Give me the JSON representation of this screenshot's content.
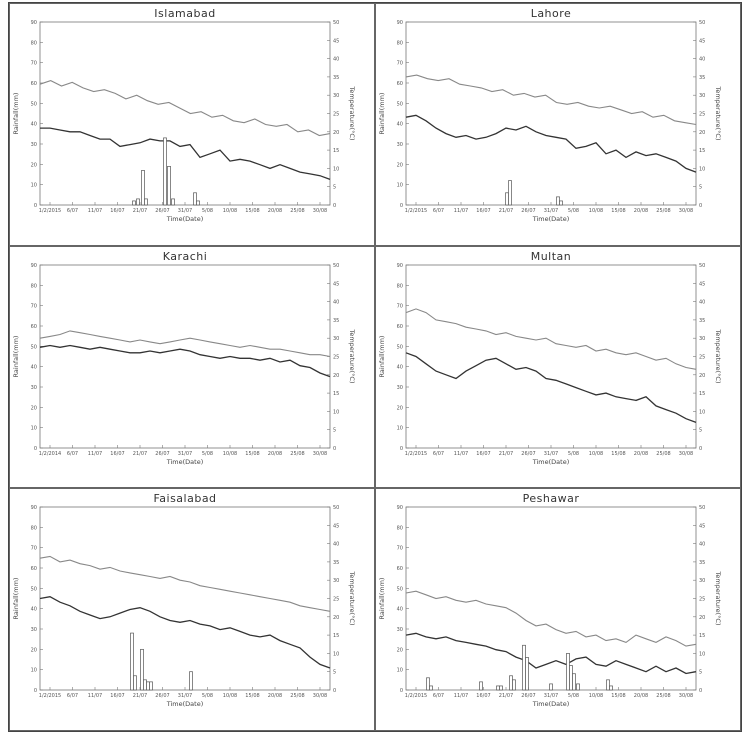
{
  "chart_data": [
    {
      "type": "line",
      "title": "Islamabad",
      "xlabel": "Time(Date)",
      "ylabel": "Rainfall(mm)",
      "y2label": "Temperature(°C)",
      "ylim": [
        0,
        90
      ],
      "y2lim": [
        0,
        50
      ],
      "xticks": [
        "1/2/2015",
        "6/07",
        "11/07",
        "16/07",
        "21/07",
        "26/07",
        "31/07",
        "5/08",
        "10/08",
        "15/08",
        "20/08",
        "25/08",
        "30/08"
      ],
      "series": [
        {
          "type": "line",
          "axis": "right",
          "values": [
            33,
            34,
            32.5,
            33.5,
            32,
            31,
            31.5,
            30.5,
            29,
            30,
            28.5,
            27.5,
            28,
            26.5,
            25,
            25.5,
            24,
            24.5,
            23,
            22.5,
            23.5,
            22,
            21.5,
            22,
            20,
            20.5,
            19,
            19.5
          ]
        },
        {
          "type": "line",
          "axis": "right",
          "values": [
            21,
            21,
            20.5,
            20,
            20,
            19,
            18,
            18,
            16,
            16.5,
            17,
            18,
            17.5,
            17.5,
            16,
            16.5,
            13,
            14,
            15,
            12,
            12.5,
            12,
            11,
            10,
            11,
            10,
            9,
            8.5,
            8,
            7
          ]
        },
        {
          "type": "bar",
          "axis": "left",
          "values": [
            {
              "x": 9.4,
              "y": 2
            },
            {
              "x": 9.8,
              "y": 3
            },
            {
              "x": 10.3,
              "y": 17
            },
            {
              "x": 10.6,
              "y": 3
            },
            {
              "x": 12.5,
              "y": 33
            },
            {
              "x": 12.9,
              "y": 19
            },
            {
              "x": 13.3,
              "y": 3
            },
            {
              "x": 15.5,
              "y": 6
            },
            {
              "x": 15.8,
              "y": 2
            }
          ]
        }
      ]
    },
    {
      "type": "line",
      "title": "Lahore",
      "xlabel": "Time(Date)",
      "ylabel": "Rainfall(mm)",
      "y2label": "Temperature(°C)",
      "ylim": [
        0,
        90
      ],
      "y2lim": [
        0,
        50
      ],
      "xticks": [
        "1/2/2015",
        "6/07",
        "11/07",
        "16/07",
        "21/07",
        "26/07",
        "31/07",
        "5/08",
        "10/08",
        "15/08",
        "20/08",
        "25/08",
        "30/08"
      ],
      "series": [
        {
          "type": "line",
          "axis": "right",
          "values": [
            35,
            35.5,
            34.5,
            34,
            34.5,
            33,
            32.5,
            32,
            31,
            31.5,
            30,
            30.5,
            29.5,
            30,
            28,
            27.5,
            28,
            27,
            26.5,
            27,
            26,
            25,
            25.5,
            24,
            24.5,
            23,
            22.5,
            22
          ]
        },
        {
          "type": "line",
          "axis": "right",
          "values": [
            24,
            24.5,
            23,
            21,
            19.5,
            18.5,
            19,
            18,
            18.5,
            19.5,
            21,
            20.5,
            21.5,
            20,
            19,
            18.5,
            18,
            15.5,
            16,
            17,
            14,
            15,
            13,
            14.5,
            13.5,
            14,
            13,
            12,
            10,
            9
          ]
        },
        {
          "type": "bar",
          "axis": "left",
          "values": [
            {
              "x": 10.1,
              "y": 6
            },
            {
              "x": 10.4,
              "y": 12
            },
            {
              "x": 15.2,
              "y": 4
            },
            {
              "x": 15.5,
              "y": 2
            }
          ]
        }
      ]
    },
    {
      "type": "line",
      "title": "Karachi",
      "xlabel": "Time(Date)",
      "ylabel": "Rainfall(mm)",
      "y2label": "Temperature(°C)",
      "ylim": [
        0,
        90
      ],
      "y2lim": [
        0,
        50
      ],
      "xticks": [
        "1/2/2014",
        "6/07",
        "11/07",
        "16/07",
        "21/07",
        "26/07",
        "31/07",
        "5/08",
        "10/08",
        "15/08",
        "20/08",
        "25/08",
        "30/08"
      ],
      "series": [
        {
          "type": "line",
          "axis": "right",
          "values": [
            30,
            30.5,
            31,
            32,
            31.5,
            31,
            30.5,
            30,
            29.5,
            29,
            29.5,
            29,
            28.5,
            29,
            29.5,
            30,
            29.5,
            29,
            28.5,
            28,
            27.5,
            28,
            27.5,
            27,
            27,
            26.5,
            26,
            25.5,
            25.5,
            25
          ]
        },
        {
          "type": "line",
          "axis": "right",
          "values": [
            27.5,
            28,
            27.5,
            28,
            27.5,
            27,
            27.5,
            27,
            26.5,
            26,
            26,
            26.5,
            26,
            26.5,
            27,
            26.5,
            25.5,
            25,
            24.5,
            25,
            24.5,
            24.5,
            24,
            24.5,
            23.5,
            24,
            22.5,
            22,
            20.5,
            19.5
          ]
        }
      ]
    },
    {
      "type": "line",
      "title": "Multan",
      "xlabel": "Time(Date)",
      "ylabel": "Rainfall(mm)",
      "y2label": "Temperature(°C)",
      "ylim": [
        0,
        90
      ],
      "y2lim": [
        0,
        50
      ],
      "xticks": [
        "1/2/2015",
        "6/07",
        "11/07",
        "16/07",
        "21/07",
        "26/07",
        "31/07",
        "5/08",
        "10/08",
        "15/08",
        "20/08",
        "25/08",
        "30/08"
      ],
      "series": [
        {
          "type": "line",
          "axis": "right",
          "values": [
            37,
            38,
            37,
            35,
            34.5,
            34,
            33,
            32.5,
            32,
            31,
            31.5,
            30.5,
            30,
            29.5,
            30,
            28.5,
            28,
            27.5,
            28,
            26.5,
            27,
            26,
            25.5,
            26,
            25,
            24,
            24.5,
            23,
            22,
            21.5
          ]
        },
        {
          "type": "line",
          "axis": "right",
          "values": [
            26,
            25,
            23,
            21,
            20,
            19,
            21,
            22.5,
            24,
            24.5,
            23,
            21.5,
            22,
            21,
            19,
            18.5,
            17.5,
            16.5,
            15.5,
            14.5,
            15,
            14,
            13.5,
            13,
            14,
            11.5,
            10.5,
            9.5,
            8,
            7
          ]
        }
      ]
    },
    {
      "type": "line",
      "title": "Faisalabad",
      "xlabel": "Time(Date)",
      "ylabel": "Rainfall(mm)",
      "y2label": "Temperature(°C)",
      "ylim": [
        0,
        90
      ],
      "y2lim": [
        0,
        50
      ],
      "xticks": [
        "1/2/2015",
        "6/07",
        "11/07",
        "16/07",
        "21/07",
        "26/07",
        "31/07",
        "5/08",
        "10/08",
        "15/08",
        "20/08",
        "25/08",
        "30/08"
      ],
      "series": [
        {
          "type": "line",
          "axis": "right",
          "values": [
            36,
            36.5,
            35,
            35.5,
            34.5,
            34,
            33,
            33.5,
            32.5,
            32,
            31.5,
            31,
            30.5,
            31,
            30,
            29.5,
            28.5,
            28,
            27.5,
            27,
            26.5,
            26,
            25.5,
            25,
            24.5,
            24,
            23,
            22.5,
            22,
            21.5
          ]
        },
        {
          "type": "line",
          "axis": "right",
          "values": [
            25,
            25.5,
            24,
            23,
            21.5,
            20.5,
            19.5,
            20,
            21,
            22,
            22.5,
            21.5,
            20,
            19,
            18.5,
            19,
            18,
            17.5,
            16.5,
            17,
            16,
            15,
            14.5,
            15,
            13.5,
            12.5,
            11.5,
            9,
            7,
            6
          ]
        },
        {
          "type": "bar",
          "axis": "left",
          "values": [
            {
              "x": 9.2,
              "y": 28
            },
            {
              "x": 9.5,
              "y": 7
            },
            {
              "x": 10.2,
              "y": 20
            },
            {
              "x": 10.5,
              "y": 5
            },
            {
              "x": 10.8,
              "y": 4
            },
            {
              "x": 11.1,
              "y": 4
            },
            {
              "x": 15.1,
              "y": 9
            }
          ]
        }
      ]
    },
    {
      "type": "line",
      "title": "Peshawar",
      "xlabel": "Time(Date)",
      "ylabel": "Rainfall(mm)",
      "y2label": "Temperature(°C)",
      "ylim": [
        0,
        90
      ],
      "y2lim": [
        0,
        50
      ],
      "xticks": [
        "1/2/2015",
        "6/07",
        "11/07",
        "16/07",
        "21/07",
        "26/07",
        "31/07",
        "5/08",
        "10/08",
        "15/08",
        "20/08",
        "25/08",
        "30/08"
      ],
      "series": [
        {
          "type": "line",
          "axis": "right",
          "values": [
            26.5,
            27,
            26,
            25,
            25.5,
            24.5,
            24,
            24.5,
            23.5,
            23,
            22.5,
            21,
            19,
            17.5,
            18,
            16.5,
            15.5,
            16,
            14.5,
            15,
            13.5,
            14,
            13,
            15,
            14,
            13,
            14.5,
            13.5,
            12,
            12.5
          ]
        },
        {
          "type": "line",
          "axis": "right",
          "values": [
            15,
            15.5,
            14.5,
            14,
            14.5,
            13.5,
            13,
            12.5,
            12,
            11,
            10.5,
            9,
            8,
            6,
            7,
            8,
            7,
            8.5,
            9,
            7,
            6.5,
            8,
            7,
            6,
            5,
            6.5,
            5,
            6,
            4.5,
            5
          ]
        },
        {
          "type": "bar",
          "axis": "left",
          "values": [
            {
              "x": 2.2,
              "y": 6
            },
            {
              "x": 2.5,
              "y": 2
            },
            {
              "x": 7.5,
              "y": 4
            },
            {
              "x": 9.2,
              "y": 2
            },
            {
              "x": 9.5,
              "y": 2
            },
            {
              "x": 10.5,
              "y": 7
            },
            {
              "x": 10.8,
              "y": 5
            },
            {
              "x": 11.8,
              "y": 22
            },
            {
              "x": 12.1,
              "y": 16
            },
            {
              "x": 14.5,
              "y": 3
            },
            {
              "x": 16.2,
              "y": 18
            },
            {
              "x": 16.5,
              "y": 12
            },
            {
              "x": 16.8,
              "y": 8
            },
            {
              "x": 17.2,
              "y": 3
            },
            {
              "x": 20.2,
              "y": 5
            },
            {
              "x": 20.5,
              "y": 2
            }
          ]
        }
      ]
    }
  ]
}
